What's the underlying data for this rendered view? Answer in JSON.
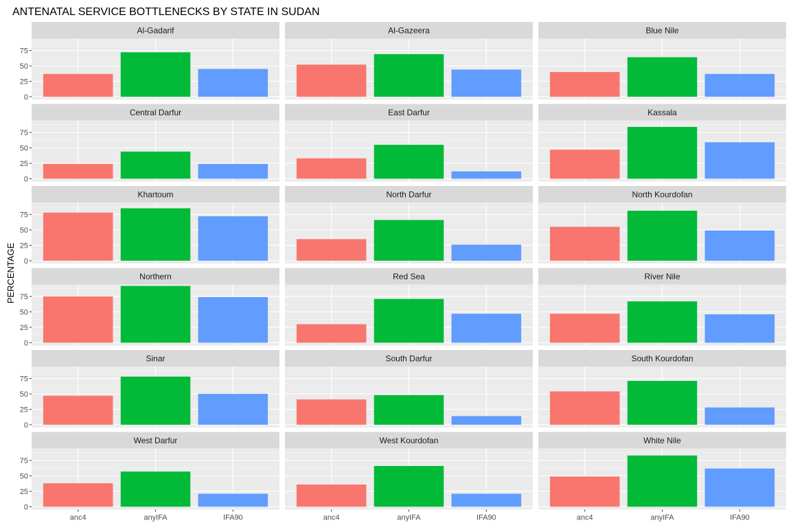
{
  "chart_data": {
    "type": "bar",
    "title": "ANTENATAL SERVICE BOTTLENECKS BY STATE IN SUDAN",
    "xlabel": "",
    "ylabel": "PERCENTAGE",
    "categories": [
      "anc4",
      "anyIFA",
      "IFA90"
    ],
    "colors": {
      "anc4": "#F8766D",
      "anyIFA": "#00BA38",
      "IFA90": "#619CFF"
    },
    "y_ticks": [
      0,
      25,
      50,
      75
    ],
    "ylim": [
      -4.5,
      94.5
    ],
    "grid": true,
    "facets": [
      {
        "label": "Al-Gadarif",
        "values": [
          37,
          72,
          45
        ]
      },
      {
        "label": "Al-Gazeera",
        "values": [
          52,
          69,
          44
        ]
      },
      {
        "label": "Blue Nile",
        "values": [
          40,
          64,
          37
        ]
      },
      {
        "label": "Central Darfur",
        "values": [
          24,
          44,
          24
        ]
      },
      {
        "label": "East Darfur",
        "values": [
          33,
          55,
          12
        ]
      },
      {
        "label": "Kassala",
        "values": [
          47,
          84,
          59
        ]
      },
      {
        "label": "Khartoum",
        "values": [
          78,
          85,
          72
        ]
      },
      {
        "label": "North Darfur",
        "values": [
          35,
          66,
          26
        ]
      },
      {
        "label": "North Kourdofan",
        "values": [
          55,
          81,
          49
        ]
      },
      {
        "label": "Northern",
        "values": [
          75,
          92,
          74
        ]
      },
      {
        "label": "Red Sea",
        "values": [
          30,
          71,
          47
        ]
      },
      {
        "label": "River Nile",
        "values": [
          47,
          67,
          46
        ]
      },
      {
        "label": "Sinar",
        "values": [
          47,
          78,
          50
        ]
      },
      {
        "label": "South Darfur",
        "values": [
          41,
          48,
          14
        ]
      },
      {
        "label": "South Kourdofan",
        "values": [
          54,
          71,
          28
        ]
      },
      {
        "label": "West Darfur",
        "values": [
          38,
          57,
          21
        ]
      },
      {
        "label": "West Kourdofan",
        "values": [
          36,
          66,
          21
        ]
      },
      {
        "label": "White Nile",
        "values": [
          49,
          83,
          62
        ]
      }
    ]
  }
}
